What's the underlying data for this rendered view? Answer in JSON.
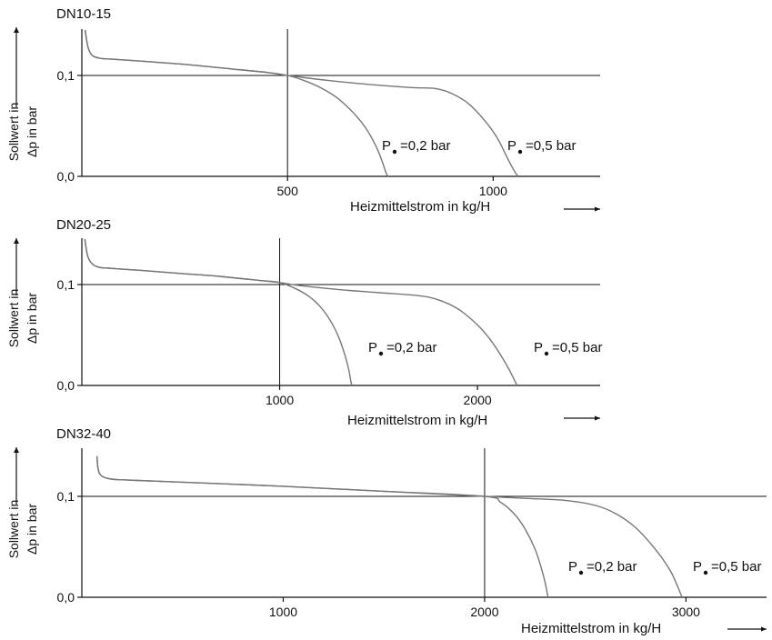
{
  "chart_data": [
    {
      "type": "line",
      "title": "DN10-15",
      "xlabel": "Heizmittelstrom in kg/H",
      "ylabel": [
        "Sollwert in",
        "Δp in bar"
      ],
      "xlim": [
        0,
        1260
      ],
      "ylim": [
        0,
        0.15
      ],
      "xticks": [
        500,
        1000
      ],
      "yticks": [
        0.0,
        0.1
      ],
      "ytick_labels": [
        "0,0",
        "0,1"
      ],
      "reference_x": 500,
      "reference_y": 0.1,
      "series": [
        {
          "label_prefix": "P",
          "label_value": "=0,2 bar",
          "x": [
            8,
            15,
            25,
            45,
            80,
            150,
            250,
            350,
            450,
            500,
            540,
            580,
            620,
            660,
            690,
            715,
            730,
            740,
            745
          ],
          "y": [
            0.145,
            0.128,
            0.12,
            0.117,
            0.116,
            0.114,
            0.111,
            0.107,
            0.103,
            0.1,
            0.095,
            0.088,
            0.078,
            0.063,
            0.048,
            0.03,
            0.015,
            0.003,
            0.0
          ]
        },
        {
          "label_prefix": "P",
          "label_value": "=0,5 bar",
          "x": [
            8,
            15,
            25,
            45,
            80,
            150,
            250,
            350,
            450,
            500,
            600,
            700,
            800,
            860,
            900,
            940,
            980,
            1010,
            1030,
            1045,
            1055,
            1060
          ],
          "y": [
            0.145,
            0.128,
            0.12,
            0.117,
            0.116,
            0.114,
            0.111,
            0.107,
            0.103,
            0.1,
            0.095,
            0.091,
            0.088,
            0.087,
            0.082,
            0.072,
            0.055,
            0.038,
            0.022,
            0.01,
            0.003,
            0.0
          ]
        }
      ]
    },
    {
      "type": "line",
      "title": "DN20-25",
      "xlabel": "Heizmittelstrom in kg/H",
      "ylabel": [
        "Sollwert in",
        "Δp in bar"
      ],
      "xlim": [
        0,
        2620
      ],
      "ylim": [
        0,
        0.15
      ],
      "xticks": [
        1000,
        2000
      ],
      "yticks": [
        0.0,
        0.1
      ],
      "ytick_labels": [
        "0,0",
        "0,1"
      ],
      "reference_x": 1000,
      "reference_y": 0.1,
      "series": [
        {
          "label_prefix": "P",
          "label_value": "=0,2 bar",
          "x": [
            15,
            30,
            55,
            90,
            150,
            300,
            500,
            700,
            900,
            1000,
            1080,
            1150,
            1210,
            1260,
            1300,
            1330,
            1350,
            1360,
            1365
          ],
          "y": [
            0.145,
            0.128,
            0.12,
            0.117,
            0.116,
            0.114,
            0.111,
            0.108,
            0.104,
            0.102,
            0.096,
            0.088,
            0.077,
            0.063,
            0.047,
            0.03,
            0.015,
            0.004,
            0.0
          ]
        },
        {
          "label_prefix": "P",
          "label_value": "=0,5 bar",
          "x": [
            15,
            30,
            55,
            90,
            150,
            300,
            500,
            700,
            900,
            1000,
            1100,
            1300,
            1500,
            1700,
            1800,
            1900,
            2000,
            2070,
            2130,
            2170,
            2190,
            2200
          ],
          "y": [
            0.145,
            0.128,
            0.12,
            0.117,
            0.116,
            0.114,
            0.111,
            0.108,
            0.104,
            0.102,
            0.099,
            0.095,
            0.092,
            0.089,
            0.085,
            0.076,
            0.06,
            0.044,
            0.026,
            0.012,
            0.004,
            0.0
          ]
        }
      ]
    },
    {
      "type": "line",
      "title": "DN32-40",
      "xlabel": "Heizmittelstrom in kg/H",
      "ylabel": [
        "Sollwert in",
        "Δp in bar"
      ],
      "xlim": [
        0,
        3400
      ],
      "ylim": [
        0,
        0.15
      ],
      "xticks": [
        1000,
        2000,
        3000
      ],
      "yticks": [
        0.0,
        0.1
      ],
      "ytick_labels": [
        "0,0",
        "0,1"
      ],
      "reference_x": 2000,
      "reference_y": 0.1,
      "series": [
        {
          "label_prefix": "P",
          "label_value": "=0,2 bar",
          "x": [
            75,
            80,
            90,
            110,
            150,
            250,
            500,
            1000,
            1500,
            2000,
            2080,
            2150,
            2200,
            2250,
            2280,
            2300,
            2310,
            2315
          ],
          "y": [
            0.14,
            0.128,
            0.122,
            0.119,
            0.117,
            0.116,
            0.114,
            0.11,
            0.105,
            0.1,
            0.094,
            0.082,
            0.068,
            0.048,
            0.03,
            0.015,
            0.005,
            0.0
          ]
        },
        {
          "label_prefix": "P",
          "label_value": "=0,5 bar",
          "x": [
            75,
            80,
            90,
            110,
            150,
            250,
            500,
            1000,
            1500,
            2000,
            2200,
            2400,
            2550,
            2650,
            2750,
            2850,
            2920,
            2960,
            2980
          ],
          "y": [
            0.14,
            0.128,
            0.122,
            0.119,
            0.117,
            0.116,
            0.114,
            0.11,
            0.105,
            0.1,
            0.098,
            0.096,
            0.091,
            0.083,
            0.069,
            0.047,
            0.027,
            0.01,
            0.0
          ]
        }
      ]
    }
  ]
}
